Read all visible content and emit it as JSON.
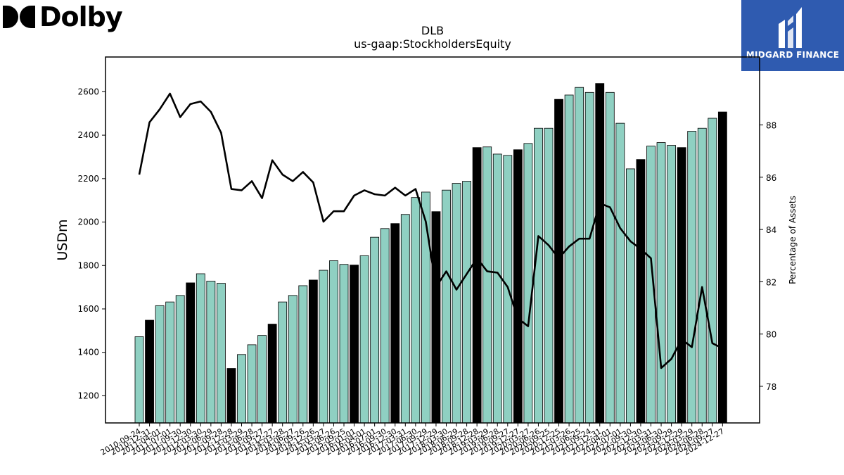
{
  "brand": {
    "logo_text": "Dolby",
    "badge_text": "MIDGARD FINANCE",
    "badge_color": "#2f5bb0"
  },
  "chart_data": {
    "type": "bar",
    "title": "DLB",
    "subtitle": "us-gaap:StockholdersEquity",
    "ylabel": "USDm",
    "y2label": "Percentage of Assets",
    "ylim": [
      1075,
      2760
    ],
    "y2lim": [
      76.6,
      90.6
    ],
    "yticks": [
      1200,
      1400,
      1600,
      1800,
      2000,
      2200,
      2400,
      2600
    ],
    "y2ticks": [
      78,
      80,
      82,
      84,
      86,
      88
    ],
    "categories": [
      "2010-09-24",
      "2010-12-31",
      "2011-04-01",
      "2011-07-01",
      "2011-09-30",
      "2011-12-30",
      "2012-03-30",
      "2012-06-29",
      "2012-09-28",
      "2012-12-28",
      "2013-03-29",
      "2013-06-28",
      "2013-09-27",
      "2013-12-27",
      "2014-03-28",
      "2014-06-27",
      "2014-09-26",
      "2014-12-26",
      "2015-03-27",
      "2015-06-26",
      "2015-09-25",
      "2016-01-01",
      "2016-04-01",
      "2016-07-01",
      "2016-09-30",
      "2016-12-30",
      "2017-03-31",
      "2017-06-30",
      "2017-09-29",
      "2017-12-29",
      "2018-03-30",
      "2018-06-29",
      "2018-09-28",
      "2018-12-28",
      "2019-03-29",
      "2019-06-28",
      "2019-09-27",
      "2019-12-27",
      "2020-03-27",
      "2020-06-26",
      "2020-09-25",
      "2020-12-25",
      "2021-03-26",
      "2021-06-25",
      "2021-09-24",
      "2021-12-31",
      "2022-04-01",
      "2022-07-01",
      "2022-09-30",
      "2022-12-30",
      "2023-03-31",
      "2023-06-30",
      "2023-09-29",
      "2023-12-29",
      "2024-03-29",
      "2024-06-28",
      "2024-09-27",
      "2024-12-27"
    ],
    "series": [
      {
        "name": "",
        "kind": "bar",
        "axis": "left",
        "values": [
          1472,
          1548,
          1615,
          1632,
          1662,
          1720,
          1762,
          1728,
          1718,
          1326,
          1390,
          1435,
          1478,
          1530,
          1632,
          1662,
          1707,
          1733,
          1778,
          1822,
          1805,
          1802,
          1845,
          1930,
          1970,
          1993,
          2035,
          2113,
          2138,
          2048,
          2147,
          2178,
          2188,
          2343,
          2346,
          2313,
          2307,
          2333,
          2362,
          2432,
          2432,
          2565,
          2585,
          2620,
          2597,
          2638,
          2597,
          2455,
          2245,
          2288,
          2350,
          2366,
          2353,
          2343,
          2418,
          2432,
          2478,
          2507
        ],
        "highlight_indices": [
          1,
          5,
          9,
          13,
          17,
          21,
          25,
          29,
          33,
          37,
          41,
          45,
          49,
          53,
          57
        ],
        "color": "#8fd0c2",
        "highlight_color": "#000000"
      },
      {
        "name": "",
        "kind": "line",
        "axis": "right",
        "values": [
          86.1,
          88.1,
          88.6,
          89.2,
          88.3,
          88.8,
          88.9,
          88.5,
          87.7,
          85.55,
          85.5,
          85.85,
          85.2,
          86.65,
          86.1,
          85.85,
          86.2,
          85.8,
          84.3,
          84.7,
          84.7,
          85.3,
          85.5,
          85.35,
          85.3,
          85.6,
          85.3,
          85.55,
          84.3,
          81.8,
          82.4,
          81.7,
          82.3,
          82.9,
          82.4,
          82.35,
          81.8,
          80.6,
          80.3,
          83.75,
          83.4,
          82.9,
          83.35,
          83.65,
          83.65,
          85.0,
          84.85,
          84.05,
          83.55,
          83.25,
          82.9,
          78.7,
          79.05,
          79.8,
          79.5,
          81.8,
          79.65,
          79.45
        ],
        "color": "#000000"
      }
    ],
    "grid": false,
    "legend": "none"
  }
}
